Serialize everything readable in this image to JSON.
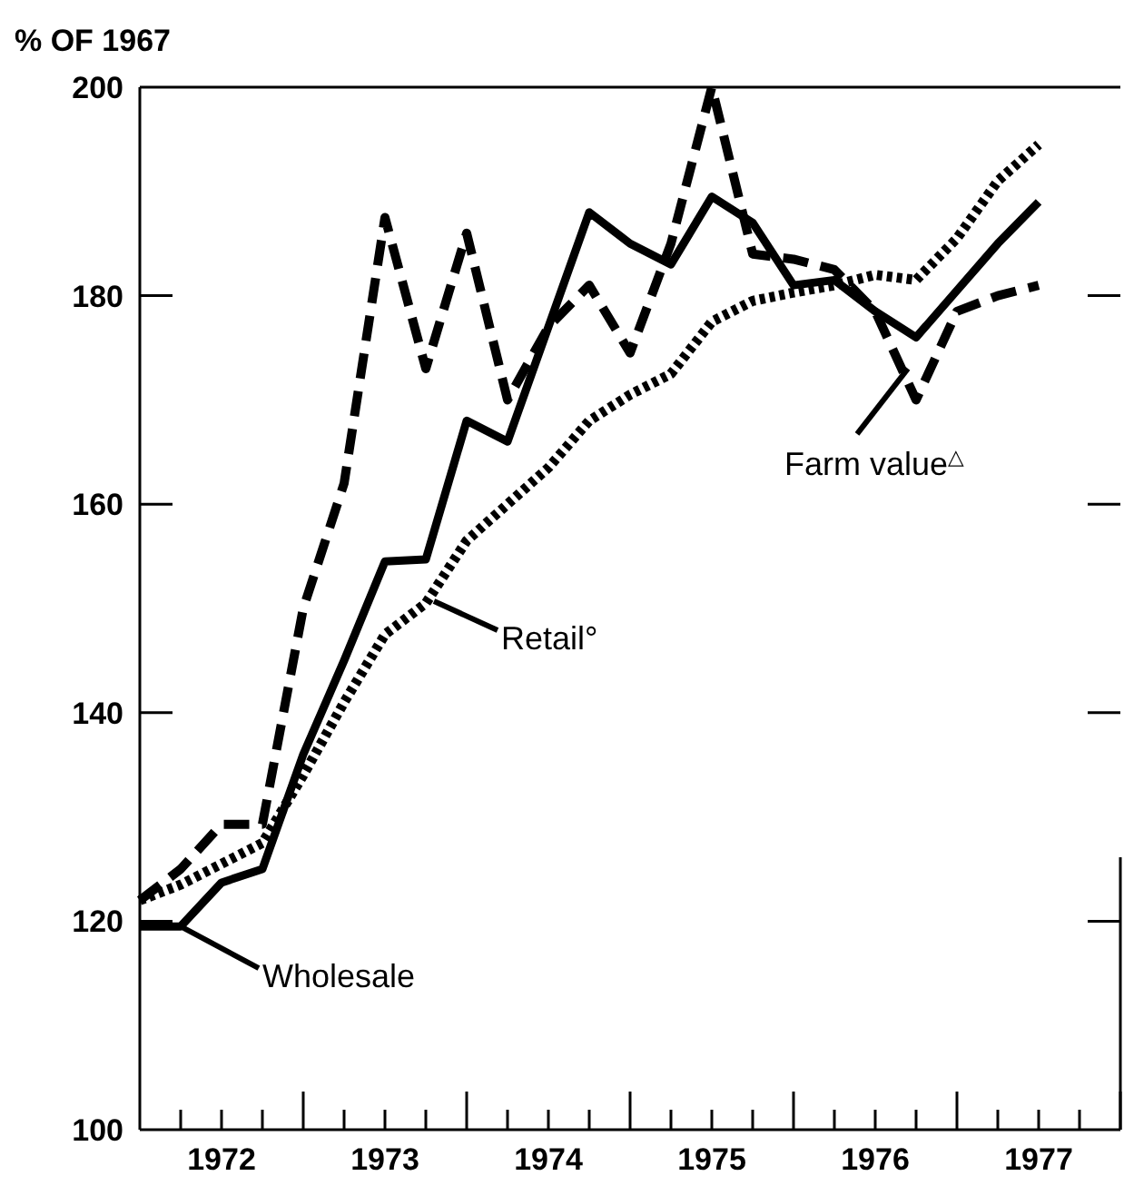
{
  "chart_data": {
    "type": "line",
    "ylabel": "% OF 1967",
    "x": [
      1972,
      1972.25,
      1972.5,
      1972.75,
      1973,
      1973.25,
      1973.5,
      1973.75,
      1974,
      1974.25,
      1974.5,
      1974.75,
      1975,
      1975.25,
      1975.5,
      1975.75,
      1976,
      1976.25,
      1976.5,
      1976.75,
      1977,
      1977.25,
      1977.5
    ],
    "series": [
      {
        "color": "#000000",
        "line_style": "solid",
        "values": [
          119.5,
          119.5,
          123.7,
          125,
          136,
          145,
          154.5,
          154.7,
          168,
          166,
          177,
          188,
          185,
          183,
          189.5,
          187,
          181,
          181.5,
          178.5,
          176,
          180.5,
          185,
          189
        ]
      },
      {
        "color": "#000000",
        "line_style": "dotted",
        "values": [
          122,
          123.5,
          125.5,
          127.5,
          134,
          141,
          147.5,
          150.5,
          156.5,
          160,
          163.5,
          168,
          170.5,
          172.5,
          177.5,
          179.5,
          180.3,
          181,
          182,
          181.5,
          185.5,
          191,
          194.5
        ]
      },
      {
        "color": "#000000",
        "line_style": "dashed",
        "values": [
          122,
          125,
          129.3,
          129.3,
          150,
          162,
          187.5,
          173,
          186,
          170,
          177,
          181,
          174.5,
          185,
          200,
          184,
          183.5,
          182.5,
          178.5,
          170,
          178.5,
          180,
          181
        ]
      }
    ],
    "xlim": [
      1972,
      1978
    ],
    "ylim": [
      100,
      200
    ],
    "xticks": [
      {
        "value": 1972.25,
        "label": null
      },
      {
        "value": 1972.5,
        "label": "1972"
      },
      {
        "value": 1972.75,
        "label": null
      },
      {
        "value": 1973,
        "label": null
      },
      {
        "value": 1973.25,
        "label": null
      },
      {
        "value": 1973.5,
        "label": "1973"
      },
      {
        "value": 1973.75,
        "label": null
      },
      {
        "value": 1974,
        "label": null
      },
      {
        "value": 1974.25,
        "label": null
      },
      {
        "value": 1974.5,
        "label": "1974"
      },
      {
        "value": 1974.75,
        "label": null
      },
      {
        "value": 1975,
        "label": null
      },
      {
        "value": 1975.25,
        "label": null
      },
      {
        "value": 1975.5,
        "label": "1975"
      },
      {
        "value": 1975.75,
        "label": null
      },
      {
        "value": 1976,
        "label": null
      },
      {
        "value": 1976.25,
        "label": null
      },
      {
        "value": 1976.5,
        "label": "1976"
      },
      {
        "value": 1976.75,
        "label": null
      },
      {
        "value": 1977,
        "label": null
      },
      {
        "value": 1977.25,
        "label": null
      },
      {
        "value": 1977.5,
        "label": "1977"
      },
      {
        "value": 1977.75,
        "label": null
      },
      {
        "value": 1978,
        "label": null
      }
    ],
    "yticks": [
      100,
      120,
      140,
      160,
      180,
      200
    ],
    "grid": false,
    "annotations": [
      {
        "text": "Wholesale",
        "x": 1972.25,
        "y": 119.5
      },
      {
        "text": "Retail°",
        "x": 1973.8,
        "y": 150.7
      },
      {
        "text": "Farm value$^{△}$",
        "x": 1976.7,
        "y": 173
      }
    ]
  }
}
